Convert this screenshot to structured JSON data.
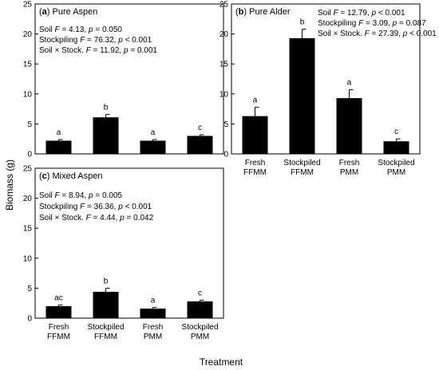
{
  "figure": {
    "y_axis_label": "Biomass  (g)",
    "x_axis_label": "Treatment"
  },
  "chart_data": [
    {
      "type": "bar",
      "panel_letter": "a",
      "title": "Pure Aspen",
      "categories": [
        "Fresh\nFFMM",
        "Stockpiled\nFFMM",
        "Fresh\nPMM",
        "Stockpiled\nPMM"
      ],
      "values": [
        2.2,
        6.1,
        2.2,
        3.0
      ],
      "errors": [
        0.2,
        0.5,
        0.2,
        0.2
      ],
      "significance": [
        "a",
        "b",
        "a",
        "c"
      ],
      "ylim": [
        0,
        25
      ],
      "yticks": [
        0,
        5,
        10,
        15,
        20,
        25
      ],
      "show_category_labels": false,
      "stats": [
        {
          "label": "Soil",
          "stat": "F",
          "value": " = 4.13, ",
          "p": "p",
          "pvalue": " = 0.050"
        },
        {
          "label": "Stockpiling",
          "stat": "F",
          "value": " = 76.32, ",
          "p": "p",
          "pvalue": " < 0.001"
        },
        {
          "label": "Soil × Stock.",
          "stat": "F",
          "value": " = 11.92, ",
          "p": "p",
          "pvalue": " = 0.001"
        }
      ]
    },
    {
      "type": "bar",
      "panel_letter": "b",
      "title": "Pure Alder",
      "categories": [
        "Fresh\nFFMM",
        "Stockpiled\nFFMM",
        "Fresh\nPMM",
        "Stockpiled\nPMM"
      ],
      "values": [
        6.3,
        19.3,
        9.3,
        2.1
      ],
      "errors": [
        1.5,
        1.5,
        1.4,
        0.4
      ],
      "significance": [
        "a",
        "b",
        "a",
        "c"
      ],
      "ylim": [
        0,
        25
      ],
      "yticks": [
        0,
        5,
        10,
        15,
        20,
        25
      ],
      "show_category_labels": true,
      "stats": [
        {
          "label": "Soil",
          "stat": "F",
          "value": " = 12.79, ",
          "p": "p",
          "pvalue": " <  0.001"
        },
        {
          "label": "Stockpiling",
          "stat": "F",
          "value": " = 3.09, ",
          "p": "p",
          "pvalue": " = 0.087"
        },
        {
          "label": "Soil × Stock.",
          "stat": "F",
          "value": " = 27.39, ",
          "p": "p",
          "pvalue": " < 0.001"
        }
      ]
    },
    {
      "type": "bar",
      "panel_letter": "c",
      "title": "Mixed Aspen",
      "categories": [
        "Fresh\nFFMM",
        "Stockpiled\nFFMM",
        "Fresh\nPMM",
        "Stockpiled\nPMM"
      ],
      "values": [
        2.0,
        4.4,
        1.6,
        2.8
      ],
      "errors": [
        0.2,
        0.6,
        0.2,
        0.2
      ],
      "significance": [
        "ac",
        "b",
        "a",
        "c"
      ],
      "ylim": [
        0,
        25
      ],
      "yticks": [
        0,
        5,
        10,
        15,
        20,
        25
      ],
      "show_category_labels": true,
      "stats": [
        {
          "label": "Soil",
          "stat": "F",
          "value": " = 8.94, ",
          "p": "p",
          "pvalue": " = 0.005"
        },
        {
          "label": "Stockpiling",
          "stat": "F",
          "value": " = 36.36, ",
          "p": "p",
          "pvalue": " < 0.001"
        },
        {
          "label": "Soil × Stock.",
          "stat": "F",
          "value": " = 4.44, ",
          "p": "p",
          "pvalue": " = 0.042"
        }
      ]
    }
  ]
}
